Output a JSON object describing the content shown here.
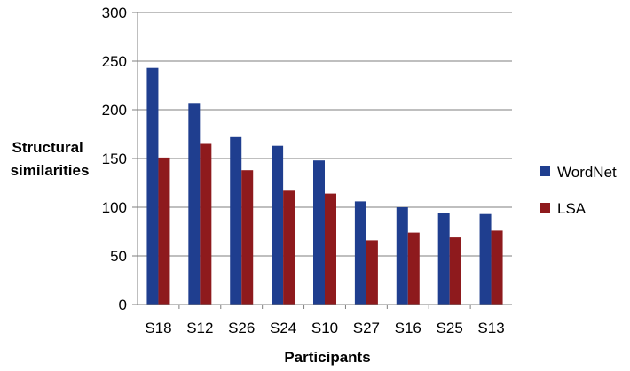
{
  "chart_data": {
    "type": "bar",
    "categories": [
      "S18",
      "S12",
      "S26",
      "S24",
      "S10",
      "S27",
      "S16",
      "S25",
      "S13"
    ],
    "series": [
      {
        "name": "WordNet",
        "color": "#1F3E8F",
        "values": [
          243,
          207,
          172,
          163,
          148,
          106,
          100,
          94,
          93
        ]
      },
      {
        "name": "LSA",
        "color": "#8E1A1D",
        "values": [
          151,
          165,
          138,
          117,
          114,
          66,
          74,
          69,
          76
        ]
      }
    ],
    "ylabel_lines": [
      "Structural",
      "similarities"
    ],
    "xlabel": "Participants",
    "ylim": [
      0,
      300
    ],
    "yticks": [
      0,
      50,
      100,
      150,
      200,
      250,
      300
    ],
    "grid": true,
    "legend_position": "right"
  }
}
